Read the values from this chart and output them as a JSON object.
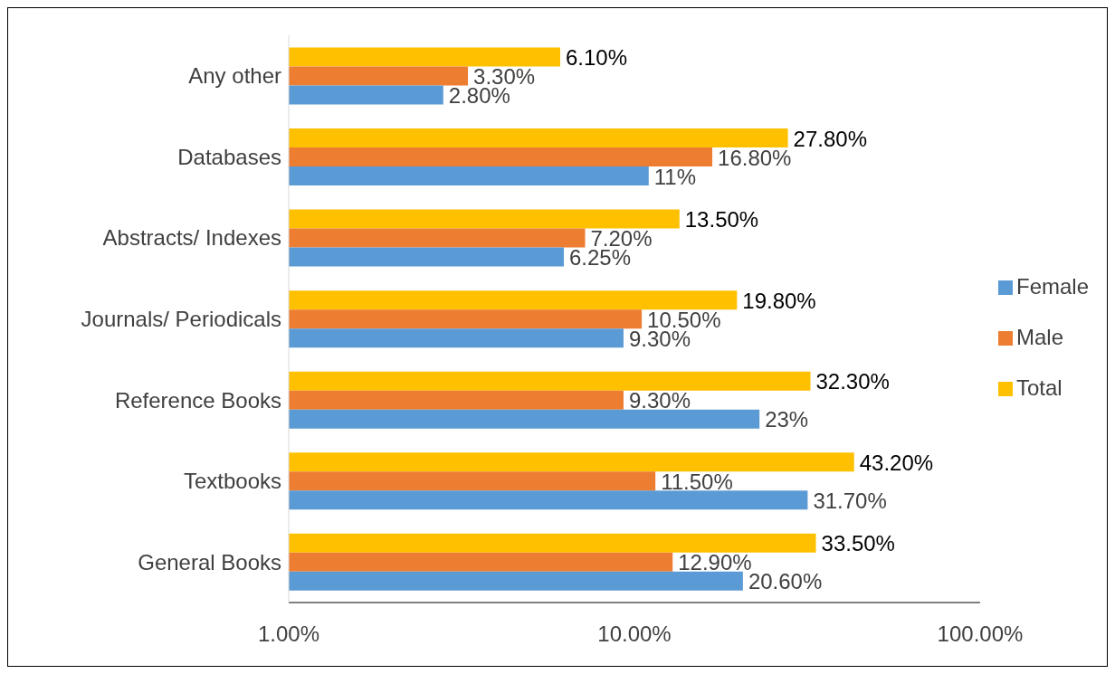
{
  "chart_data": {
    "type": "bar",
    "orientation": "horizontal",
    "log": "x",
    "categories": [
      "Any other",
      "Databases",
      "Abstracts/ Indexes",
      "Journals/ Periodicals",
      "Reference Books",
      "Textbooks",
      "General Books"
    ],
    "series": [
      {
        "name": "Total",
        "color": "#ffc000",
        "values": [
          6.1,
          27.8,
          13.5,
          19.8,
          32.3,
          43.2,
          33.5
        ],
        "value_labels": [
          "6.10%",
          "27.80%",
          "13.50%",
          "19.80%",
          "32.30%",
          "43.20%",
          "33.50%"
        ]
      },
      {
        "name": "Male",
        "color": "#ed7d31",
        "values": [
          3.3,
          16.8,
          7.2,
          10.5,
          9.3,
          11.5,
          12.9
        ],
        "value_labels": [
          "3.30%",
          "16.80%",
          "7.20%",
          "10.50%",
          "9.30%",
          "11.50%",
          "12.90%"
        ]
      },
      {
        "name": "Female",
        "color": "#5b9bd5",
        "values": [
          2.8,
          11,
          6.25,
          9.3,
          23,
          31.7,
          20.6
        ],
        "value_labels": [
          "2.80%",
          "11%",
          "6.25%",
          "9.30%",
          "23%",
          "31.70%",
          "20.60%"
        ]
      }
    ],
    "xlim": [
      1,
      100
    ],
    "xticks": [
      {
        "value": 1,
        "label": "1.00%"
      },
      {
        "value": 10,
        "label": "10.00%"
      },
      {
        "value": 100,
        "label": "100.00%"
      }
    ],
    "grid": false,
    "legend": "right"
  }
}
